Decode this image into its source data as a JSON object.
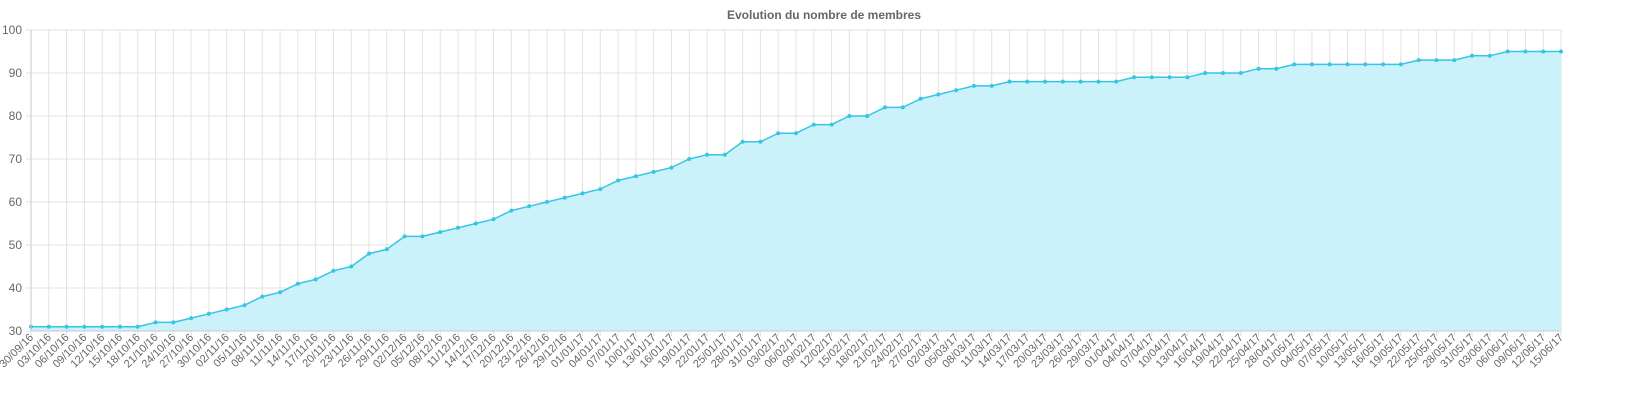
{
  "chart_data": {
    "type": "area",
    "title": "Evolution du nombre de membres",
    "xlabel": "",
    "ylabel": "",
    "ylim": [
      30,
      100
    ],
    "yticks": [
      30,
      40,
      50,
      60,
      70,
      80,
      90,
      100
    ],
    "grid": true,
    "legend": "none",
    "colors": {
      "line": "#36c5e3",
      "fill": "#cbf2fb",
      "grid": "#e1e1e1",
      "axis": "#c8c8c8",
      "text": "#666666"
    },
    "x": [
      "30/09/16",
      "03/10/16",
      "06/10/16",
      "09/10/16",
      "12/10/16",
      "15/10/16",
      "18/10/16",
      "21/10/16",
      "24/10/16",
      "27/10/16",
      "30/10/16",
      "02/11/16",
      "05/11/16",
      "08/11/16",
      "11/11/16",
      "14/11/16",
      "17/11/16",
      "20/11/16",
      "23/11/16",
      "26/11/16",
      "29/11/16",
      "02/12/16",
      "05/12/16",
      "08/12/16",
      "11/12/16",
      "14/12/16",
      "17/12/16",
      "20/12/16",
      "23/12/16",
      "26/12/16",
      "29/12/16",
      "01/01/17",
      "04/01/17",
      "07/01/17",
      "10/01/17",
      "13/01/17",
      "16/01/17",
      "19/01/17",
      "22/01/17",
      "25/01/17",
      "28/01/17",
      "31/01/17",
      "03/02/17",
      "06/02/17",
      "09/02/17",
      "12/02/17",
      "15/02/17",
      "18/02/17",
      "21/02/17",
      "24/02/17",
      "27/02/17",
      "02/03/17",
      "05/03/17",
      "08/03/17",
      "11/03/17",
      "14/03/17",
      "17/03/17",
      "20/03/17",
      "23/03/17",
      "26/03/17",
      "29/03/17",
      "01/04/17",
      "04/04/17",
      "07/04/17",
      "10/04/17",
      "13/04/17",
      "16/04/17",
      "19/04/17",
      "22/04/17",
      "25/04/17",
      "28/04/17",
      "01/05/17",
      "04/05/17",
      "07/05/17",
      "10/05/17",
      "13/05/17",
      "16/05/17",
      "19/05/17",
      "22/05/17",
      "25/05/17",
      "28/05/17",
      "31/05/17",
      "03/06/17",
      "06/06/17",
      "09/06/17",
      "12/06/17",
      "15/06/17"
    ],
    "series": [
      {
        "values": [
          31,
          31,
          31,
          31,
          31,
          31,
          31,
          32,
          32,
          33,
          34,
          35,
          36,
          38,
          39,
          41,
          42,
          44,
          45,
          48,
          49,
          52,
          52,
          53,
          54,
          55,
          56,
          58,
          59,
          60,
          61,
          62,
          63,
          65,
          66,
          67,
          68,
          70,
          71,
          71,
          74,
          74,
          76,
          76,
          78,
          78,
          80,
          80,
          82,
          82,
          84,
          85,
          86,
          87,
          87,
          88,
          88,
          88,
          88,
          88,
          88,
          88,
          89,
          89,
          89,
          89,
          90,
          90,
          90,
          91,
          91,
          92,
          92,
          92,
          92,
          92,
          92,
          92,
          93,
          93,
          93,
          94,
          94,
          95,
          95,
          95,
          95
        ]
      }
    ]
  }
}
